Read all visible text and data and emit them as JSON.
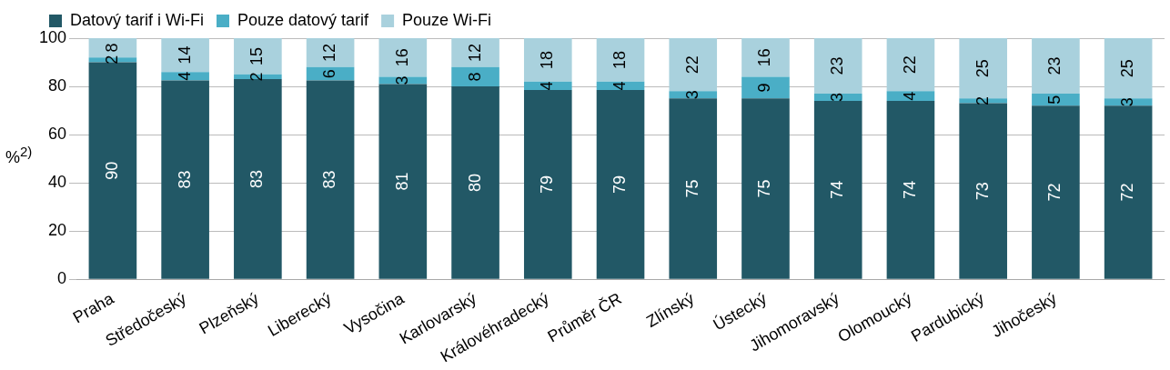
{
  "chart_data": {
    "type": "bar",
    "stacked": true,
    "ylabel": "%$^{2)}$",
    "categories": [
      "Praha",
      "Středočeský",
      "Plzeňský",
      "Liberecký",
      "Vysočina",
      "Karlovarský",
      "Královéhradecký",
      "Průměr ČR",
      "Zlínský",
      "Ústecký",
      "Jihomoravský",
      "Olomoucký",
      "Pardubický",
      "Jihočeský",
      null
    ],
    "series": [
      {
        "name": "Datový tarif i Wi-Fi",
        "color": "#225866",
        "values": [
          90,
          82.5,
          83,
          82.5,
          81,
          80,
          78.5,
          78.5,
          75,
          75,
          74,
          74,
          73,
          72,
          72
        ],
        "value_labels": [
          "90",
          "83",
          "83",
          "83",
          "81",
          "80",
          "79",
          "79",
          "75",
          "75",
          "74",
          "74",
          "73",
          "72",
          "72"
        ]
      },
      {
        "name": "Pouze datový tarif",
        "color": "#4aaec6",
        "values": [
          2,
          3.5,
          2,
          5.5,
          3,
          8,
          3.5,
          3.5,
          3,
          9,
          3,
          4,
          2,
          5,
          3
        ],
        "value_labels": [
          "2",
          "4",
          "2",
          "6",
          "3",
          "8",
          "4",
          "4",
          "3",
          "9",
          "3",
          "4",
          "2",
          "5",
          "3"
        ]
      },
      {
        "name": "Pouze Wi-Fi",
        "color": "#a9d1dd",
        "values": [
          8,
          14,
          15,
          12,
          16,
          12,
          18,
          18,
          22,
          16,
          23,
          22,
          25,
          23,
          25
        ],
        "value_labels": [
          "8",
          "14",
          "15",
          "12",
          "16",
          "12",
          "18",
          "18",
          "22",
          "16",
          "23",
          "22",
          "25",
          "23",
          "25"
        ]
      }
    ],
    "ylim": [
      0,
      100
    ],
    "yticks": [
      0,
      20,
      40,
      60,
      80,
      100
    ],
    "grid": "y",
    "legend": "top left"
  }
}
